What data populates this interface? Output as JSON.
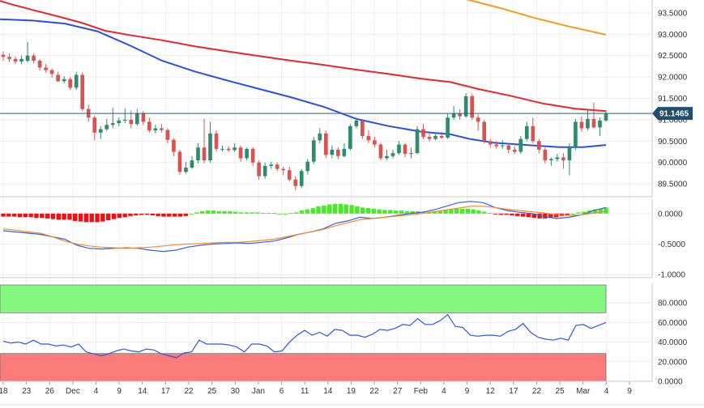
{
  "chart_data": [
    {
      "type": "candlestick",
      "panel": "price",
      "ylim": [
        89.2,
        93.8
      ],
      "y_ticks": [
        "93.5000",
        "93.0000",
        "92.5000",
        "92.0000",
        "91.5000",
        "91.0000",
        "90.5000",
        "90.0000",
        "89.5000"
      ],
      "current_price": "91.1465",
      "colors": {
        "up": "#2e8b6e",
        "down": "#d9534f",
        "grid": "#e8e8e8",
        "current": "#2c5f7a"
      },
      "x_ticks": [
        "18",
        "23",
        "26",
        "Dec",
        "4",
        "9",
        "14",
        "17",
        "22",
        "25",
        "30",
        "Jan",
        "6",
        "11",
        "14",
        "19",
        "22",
        "27",
        "Feb",
        "4",
        "9",
        "12",
        "17",
        "22",
        "25",
        "Mar",
        "4",
        "9"
      ],
      "series": [
        {
          "name": "",
          "style": "ma-red",
          "color": "#e8262b",
          "points": [
            [
              0,
              93.78
            ],
            [
              14,
              93.7
            ],
            [
              42,
              93.56
            ],
            [
              75,
              93.4
            ],
            [
              102,
              93.26
            ],
            [
              130,
              93.08
            ],
            [
              160,
              92.98
            ],
            [
              200,
              92.86
            ],
            [
              240,
              92.72
            ],
            [
              280,
              92.6
            ],
            [
              320,
              92.49
            ],
            [
              360,
              92.38
            ],
            [
              400,
              92.28
            ],
            [
              440,
              92.17
            ],
            [
              480,
              92.07
            ],
            [
              520,
              91.96
            ],
            [
              556,
              91.88
            ],
            [
              590,
              91.72
            ],
            [
              630,
              91.56
            ],
            [
              670,
              91.38
            ],
            [
              710,
              91.26
            ],
            [
              748,
              91.2
            ]
          ]
        },
        {
          "name": "",
          "style": "ma-blue",
          "color": "#2b4fe6",
          "points": [
            [
              0,
              93.35
            ],
            [
              40,
              93.32
            ],
            [
              80,
              93.25
            ],
            [
              120,
              93.07
            ],
            [
              160,
              92.74
            ],
            [
              200,
              92.38
            ],
            [
              240,
              92.13
            ],
            [
              280,
              91.92
            ],
            [
              320,
              91.72
            ],
            [
              360,
              91.52
            ],
            [
              400,
              91.3
            ],
            [
              440,
              91.02
            ],
            [
              480,
              90.85
            ],
            [
              520,
              90.72
            ],
            [
              556,
              90.66
            ],
            [
              580,
              90.55
            ],
            [
              610,
              90.46
            ],
            [
              650,
              90.41
            ],
            [
              690,
              90.36
            ],
            [
              720,
              90.36
            ],
            [
              748,
              90.41
            ]
          ]
        },
        {
          "name": "",
          "style": "ma-orange",
          "color": "#f49b1b",
          "points": [
            [
              575,
              93.82
            ],
            [
              620,
              93.6
            ],
            [
              660,
              93.38
            ],
            [
              700,
              93.19
            ],
            [
              748,
              92.99
            ]
          ]
        }
      ],
      "candles": [
        [
          92.52,
          92.47,
          92.6,
          92.38
        ],
        [
          92.47,
          92.42,
          92.55,
          92.35
        ],
        [
          92.42,
          92.36,
          92.48,
          92.3
        ],
        [
          92.36,
          92.42,
          92.5,
          92.3
        ],
        [
          92.38,
          92.5,
          92.82,
          92.34
        ],
        [
          92.5,
          92.38,
          92.55,
          92.32
        ],
        [
          92.38,
          92.22,
          92.42,
          92.15
        ],
        [
          92.22,
          92.16,
          92.3,
          92.1
        ],
        [
          92.16,
          92.07,
          92.2,
          91.98
        ],
        [
          92.05,
          91.9,
          92.12,
          91.88
        ],
        [
          91.9,
          91.95,
          92.02,
          91.85
        ],
        [
          91.95,
          91.75,
          92.0,
          91.7
        ],
        [
          91.75,
          92.05,
          92.12,
          91.7
        ],
        [
          92.05,
          91.25,
          92.1,
          91.2
        ],
        [
          91.25,
          91.05,
          91.35,
          90.95
        ],
        [
          91.05,
          90.7,
          91.1,
          90.52
        ],
        [
          90.7,
          90.78,
          90.85,
          90.55
        ],
        [
          90.78,
          90.88,
          91.02,
          90.74
        ],
        [
          90.88,
          90.92,
          91.28,
          90.8
        ],
        [
          90.92,
          90.98,
          91.05,
          90.85
        ],
        [
          90.98,
          91.0,
          91.26,
          90.92
        ],
        [
          91.0,
          90.9,
          91.22,
          90.8
        ],
        [
          90.9,
          91.15,
          91.25,
          90.86
        ],
        [
          91.15,
          90.95,
          91.2,
          90.88
        ],
        [
          90.95,
          90.75,
          91.05,
          90.7
        ],
        [
          90.75,
          90.8,
          90.88,
          90.68
        ],
        [
          90.8,
          90.76,
          90.9,
          90.7
        ],
        [
          90.76,
          90.53,
          90.8,
          90.45
        ],
        [
          90.53,
          90.25,
          90.57,
          90.15
        ],
        [
          90.25,
          89.78,
          90.3,
          89.72
        ],
        [
          89.78,
          89.88,
          90.02,
          89.74
        ],
        [
          89.88,
          90.05,
          90.15,
          89.85
        ],
        [
          90.05,
          90.35,
          90.45,
          89.98
        ],
        [
          90.35,
          90.05,
          91.02,
          89.98
        ],
        [
          90.05,
          90.68,
          90.95,
          90.0
        ],
        [
          90.68,
          90.32,
          90.75,
          90.25
        ],
        [
          90.32,
          90.32,
          90.4,
          90.26
        ],
        [
          90.32,
          90.29,
          90.38,
          90.24
        ],
        [
          90.29,
          90.35,
          90.45,
          90.25
        ],
        [
          90.35,
          90.1,
          90.4,
          90.02
        ],
        [
          90.1,
          90.32,
          90.35,
          90.05
        ],
        [
          90.32,
          90.0,
          90.36,
          89.92
        ],
        [
          90.0,
          89.68,
          90.05,
          89.6
        ],
        [
          89.68,
          89.92,
          90.0,
          89.62
        ],
        [
          89.92,
          89.95,
          90.02,
          89.85
        ],
        [
          89.95,
          89.85,
          90.0,
          89.8
        ],
        [
          89.85,
          89.82,
          89.9,
          89.7
        ],
        [
          89.82,
          89.6,
          89.9,
          89.55
        ],
        [
          89.6,
          89.45,
          89.68,
          89.35
        ],
        [
          89.45,
          89.8,
          89.85,
          89.4
        ],
        [
          89.8,
          90.02,
          90.08,
          89.72
        ],
        [
          90.02,
          90.52,
          90.6,
          89.96
        ],
        [
          90.52,
          90.68,
          90.8,
          90.45
        ],
        [
          90.68,
          90.18,
          90.75,
          90.1
        ],
        [
          90.18,
          90.3,
          90.4,
          90.1
        ],
        [
          90.3,
          90.15,
          90.36,
          90.08
        ],
        [
          90.15,
          90.32,
          90.45,
          90.12
        ],
        [
          90.32,
          90.85,
          90.9,
          90.28
        ],
        [
          90.85,
          90.98,
          91.05,
          90.8
        ],
        [
          90.98,
          90.62,
          91.02,
          90.55
        ],
        [
          90.62,
          90.52,
          90.75,
          90.45
        ],
        [
          90.52,
          90.42,
          90.6,
          90.35
        ],
        [
          90.42,
          90.1,
          90.45,
          90.05
        ],
        [
          90.1,
          90.15,
          90.3,
          90.05
        ],
        [
          90.15,
          90.22,
          90.3,
          90.1
        ],
        [
          90.22,
          90.42,
          90.5,
          90.18
        ],
        [
          90.42,
          90.2,
          90.45,
          90.12
        ],
        [
          90.2,
          90.22,
          90.35,
          90.1
        ],
        [
          90.22,
          90.78,
          90.85,
          90.2
        ],
        [
          90.78,
          90.6,
          90.9,
          90.55
        ],
        [
          90.6,
          90.55,
          90.68,
          90.5
        ],
        [
          90.55,
          90.62,
          90.7,
          90.52
        ],
        [
          90.62,
          90.58,
          90.72,
          90.55
        ],
        [
          90.58,
          91.05,
          91.15,
          90.55
        ],
        [
          91.05,
          91.15,
          91.32,
          91.0
        ],
        [
          91.15,
          91.08,
          91.25,
          91.0
        ],
        [
          91.08,
          91.55,
          91.62,
          91.05
        ],
        [
          91.55,
          91.05,
          91.6,
          91.0
        ],
        [
          91.05,
          90.95,
          91.12,
          90.75
        ],
        [
          90.95,
          90.5,
          91.0,
          90.45
        ],
        [
          90.5,
          90.42,
          90.55,
          90.35
        ],
        [
          90.42,
          90.38,
          90.5,
          90.32
        ],
        [
          90.38,
          90.4,
          90.52,
          90.32
        ],
        [
          90.4,
          90.3,
          90.45,
          90.22
        ],
        [
          90.3,
          90.25,
          90.38,
          90.2
        ],
        [
          90.25,
          90.55,
          90.62,
          90.2
        ],
        [
          90.55,
          90.85,
          90.95,
          90.5
        ],
        [
          90.85,
          90.5,
          91.05,
          90.45
        ],
        [
          90.5,
          90.3,
          90.55,
          90.22
        ],
        [
          90.3,
          90.05,
          90.35,
          89.98
        ],
        [
          90.05,
          90.08,
          90.12,
          89.92
        ],
        [
          90.08,
          90.12,
          90.2,
          90.02
        ],
        [
          90.12,
          90.05,
          90.22,
          89.85
        ],
        [
          90.05,
          90.35,
          90.45,
          89.7
        ],
        [
          90.35,
          90.95,
          91.02,
          90.3
        ],
        [
          90.95,
          90.8,
          91.08,
          90.72
        ],
        [
          90.8,
          91.02,
          91.22,
          90.75
        ],
        [
          91.02,
          90.82,
          91.4,
          90.8
        ],
        [
          90.82,
          90.98,
          91.05,
          90.62
        ],
        [
          90.98,
          91.15,
          91.22,
          90.95
        ]
      ]
    },
    {
      "type": "bar",
      "panel": "macd",
      "ylim": [
        -1.05,
        0.25
      ],
      "y_ticks": [
        "0.0000",
        "-0.5000",
        "-1.0000"
      ],
      "colors": {
        "positive": "#44ee22",
        "negative": "#ee1111"
      },
      "series": [
        {
          "name": "",
          "color": "#3a5de8",
          "values": [
            -0.28,
            -0.3,
            -0.32,
            -0.34,
            -0.38,
            -0.42,
            -0.52,
            -0.57,
            -0.58,
            -0.57,
            -0.56,
            -0.57,
            -0.6,
            -0.62,
            -0.6,
            -0.55,
            -0.52,
            -0.5,
            -0.49,
            -0.48,
            -0.49,
            -0.47,
            -0.45,
            -0.4,
            -0.34,
            -0.3,
            -0.25,
            -0.16,
            -0.12,
            -0.06,
            -0.08,
            -0.06,
            -0.03,
            0.0,
            0.02,
            0.06,
            0.12,
            0.18,
            0.2,
            0.18,
            0.1,
            0.05,
            0.02,
            0.0,
            -0.05,
            -0.08,
            -0.06,
            -0.02,
            0.05,
            0.1
          ]
        },
        {
          "name": "",
          "color": "#f08c2a",
          "values": [
            -0.25,
            -0.27,
            -0.3,
            -0.32,
            -0.38,
            -0.45,
            -0.5,
            -0.53,
            -0.55,
            -0.56,
            -0.57,
            -0.56,
            -0.55,
            -0.53,
            -0.51,
            -0.5,
            -0.49,
            -0.48,
            -0.47,
            -0.47,
            -0.46,
            -0.44,
            -0.42,
            -0.38,
            -0.34,
            -0.3,
            -0.26,
            -0.2,
            -0.15,
            -0.1,
            -0.08,
            -0.06,
            -0.04,
            -0.02,
            0.0,
            0.03,
            0.06,
            0.09,
            0.12,
            0.12,
            0.1,
            0.07,
            0.05,
            0.03,
            0.01,
            -0.02,
            -0.03,
            -0.02,
            0.01,
            0.04
          ]
        },
        {
          "name": "",
          "style": "histogram",
          "values": [
            -0.05,
            -0.05,
            -0.05,
            -0.06,
            -0.06,
            -0.06,
            -0.07,
            -0.07,
            -0.08,
            -0.09,
            -0.1,
            -0.1,
            -0.1,
            -0.12,
            -0.13,
            -0.14,
            -0.14,
            -0.14,
            -0.13,
            -0.11,
            -0.09,
            -0.07,
            -0.06,
            -0.04,
            -0.03,
            -0.02,
            -0.02,
            -0.03,
            -0.04,
            -0.05,
            -0.05,
            -0.05,
            -0.05,
            -0.04,
            0.0,
            0.02,
            0.04,
            0.05,
            0.05,
            0.04,
            0.04,
            0.04,
            0.03,
            0.02,
            0.02,
            0.02,
            0.02,
            0.01,
            0.01,
            0.01,
            0.0,
            0.0,
            0.01,
            0.02,
            0.05,
            0.07,
            0.09,
            0.12,
            0.13,
            0.15,
            0.16,
            0.16,
            0.15,
            0.14,
            0.12,
            0.1,
            0.09,
            0.08,
            0.07,
            0.06,
            0.06,
            0.05,
            0.05,
            0.04,
            0.04,
            0.04,
            0.03,
            0.03,
            0.04,
            0.05,
            0.06,
            0.07,
            0.08,
            0.08,
            0.08,
            0.07,
            0.05,
            0.03,
            0.01,
            -0.01,
            -0.02,
            -0.02,
            -0.03,
            -0.04,
            -0.05,
            -0.06,
            -0.07,
            -0.08,
            -0.08,
            -0.07,
            -0.06,
            -0.04,
            -0.02,
            0.0,
            0.02,
            0.03,
            0.05,
            0.07,
            0.08,
            0.1
          ]
        }
      ]
    },
    {
      "type": "line",
      "panel": "rsi",
      "ylim": [
        0,
        100
      ],
      "y_ticks": [
        "80.0000",
        "60.0000",
        "40.0000",
        "20.0000",
        "0.0000"
      ],
      "bands": [
        {
          "from": 70,
          "to": 100,
          "color": "#84f77f"
        },
        {
          "from": 0,
          "to": 30,
          "color": "#fb7a7a"
        }
      ],
      "series": [
        {
          "name": "",
          "color": "#2f57e0",
          "values": [
            41,
            39,
            40,
            38,
            42,
            38,
            38,
            36,
            37,
            35,
            38,
            30,
            28,
            26,
            28,
            31,
            33,
            31,
            30,
            33,
            32,
            28,
            26,
            24,
            29,
            30,
            42,
            38,
            38,
            38,
            37,
            35,
            30,
            38,
            38,
            36,
            30,
            31,
            40,
            47,
            52,
            47,
            50,
            46,
            53,
            52,
            47,
            47,
            45,
            48,
            53,
            52,
            54,
            58,
            57,
            64,
            58,
            58,
            62,
            68,
            56,
            55,
            47,
            46,
            47,
            47,
            46,
            51,
            53,
            59,
            50,
            45,
            43,
            42,
            44,
            42,
            57,
            58,
            54,
            57,
            60
          ]
        }
      ]
    }
  ]
}
